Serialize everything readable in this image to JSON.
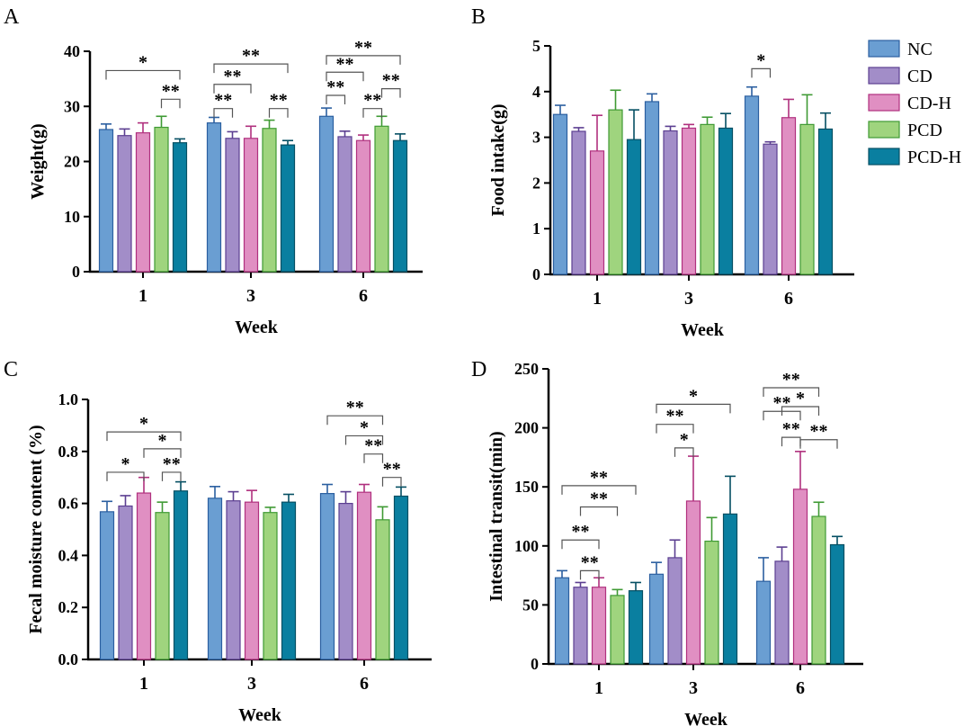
{
  "legend": [
    {
      "name": "NC",
      "color": "#6a9ed2",
      "edge": "#2b5fa0"
    },
    {
      "name": "CD",
      "color": "#a28dc8",
      "edge": "#5c3f91"
    },
    {
      "name": "CD-H",
      "color": "#e08fc2",
      "edge": "#b0307e"
    },
    {
      "name": "PCD",
      "color": "#9fd47e",
      "edge": "#3f9a34"
    },
    {
      "name": "PCD-H",
      "color": "#0a7fa0",
      "edge": "#054f63"
    }
  ],
  "chart_data": [
    {
      "type": "bar",
      "panel": "A",
      "categories": [
        "1",
        "3",
        "6"
      ],
      "xlabel": "Week",
      "ylabel": "Weight(g)",
      "ylim": [
        0,
        40
      ],
      "yticks": [
        0,
        10,
        20,
        30,
        40
      ],
      "series": [
        {
          "name": "NC",
          "values": [
            25.8,
            27.0,
            28.2
          ],
          "errors": [
            1.0,
            1.0,
            1.5
          ]
        },
        {
          "name": "CD",
          "values": [
            24.7,
            24.2,
            24.5
          ],
          "errors": [
            1.2,
            1.2,
            1.0
          ]
        },
        {
          "name": "CD-H",
          "values": [
            25.2,
            24.2,
            23.8
          ],
          "errors": [
            1.8,
            2.2,
            1.0
          ]
        },
        {
          "name": "PCD",
          "values": [
            26.2,
            26.0,
            26.4
          ],
          "errors": [
            2.0,
            1.5,
            1.8
          ]
        },
        {
          "name": "PCD-H",
          "values": [
            23.4,
            23.0,
            23.8
          ],
          "errors": [
            0.7,
            0.8,
            1.2
          ]
        }
      ],
      "annotations": [
        {
          "cat": 0,
          "from": 0,
          "to": 4,
          "y": 36.5,
          "label": "*"
        },
        {
          "cat": 0,
          "from": 3,
          "to": 4,
          "y": 31.3,
          "label": "**"
        },
        {
          "cat": 1,
          "from": 0,
          "to": 4,
          "y": 37.7,
          "label": "**"
        },
        {
          "cat": 1,
          "from": 0,
          "to": 2,
          "y": 34.0,
          "label": "**"
        },
        {
          "cat": 1,
          "from": 0,
          "to": 1,
          "y": 29.6,
          "label": "**"
        },
        {
          "cat": 1,
          "from": 3,
          "to": 4,
          "y": 29.6,
          "label": "**"
        },
        {
          "cat": 2,
          "from": 0,
          "to": 4,
          "y": 39.2,
          "label": "**"
        },
        {
          "cat": 2,
          "from": 0,
          "to": 2,
          "y": 36.2,
          "label": "**"
        },
        {
          "cat": 2,
          "from": 0,
          "to": 1,
          "y": 32.0,
          "label": "**"
        },
        {
          "cat": 2,
          "from": 3,
          "to": 4,
          "y": 33.2,
          "label": "**"
        },
        {
          "cat": 2,
          "from": 2,
          "to": 3,
          "y": 29.6,
          "label": "**"
        }
      ]
    },
    {
      "type": "bar",
      "panel": "B",
      "categories": [
        "1",
        "3",
        "6"
      ],
      "xlabel": "Week",
      "ylabel": "Food intake(g)",
      "ylim": [
        0,
        5
      ],
      "yticks": [
        0,
        1,
        2,
        3,
        4,
        5
      ],
      "series": [
        {
          "name": "NC",
          "values": [
            3.5,
            3.78,
            3.9
          ],
          "errors": [
            0.2,
            0.17,
            0.2
          ]
        },
        {
          "name": "CD",
          "values": [
            3.13,
            3.14,
            2.85
          ],
          "errors": [
            0.08,
            0.1,
            0.05
          ]
        },
        {
          "name": "CD-H",
          "values": [
            2.7,
            3.2,
            3.43
          ],
          "errors": [
            0.78,
            0.08,
            0.4
          ]
        },
        {
          "name": "PCD",
          "values": [
            3.6,
            3.28,
            3.28
          ],
          "errors": [
            0.43,
            0.16,
            0.65
          ]
        },
        {
          "name": "PCD-H",
          "values": [
            2.95,
            3.2,
            3.18
          ],
          "errors": [
            0.65,
            0.32,
            0.35
          ]
        }
      ],
      "annotations": [
        {
          "cat": 2,
          "from": 0,
          "to": 1,
          "y": 4.5,
          "label": "*"
        }
      ]
    },
    {
      "type": "bar",
      "panel": "C",
      "categories": [
        "1",
        "3",
        "6"
      ],
      "xlabel": "Week",
      "ylabel": "Fecal moisture content (%)",
      "ylim": [
        0,
        1.0
      ],
      "yticks": [
        0.0,
        0.2,
        0.4,
        0.6,
        0.8,
        1.0
      ],
      "ytick_labels": [
        "0.0",
        "0.2",
        "0.4",
        "0.6",
        "0.8",
        "1.0"
      ],
      "series": [
        {
          "name": "NC",
          "values": [
            0.568,
            0.62,
            0.638
          ],
          "errors": [
            0.04,
            0.045,
            0.035
          ]
        },
        {
          "name": "CD",
          "values": [
            0.59,
            0.61,
            0.6
          ],
          "errors": [
            0.04,
            0.035,
            0.045
          ]
        },
        {
          "name": "CD-H",
          "values": [
            0.64,
            0.605,
            0.643
          ],
          "errors": [
            0.06,
            0.045,
            0.03
          ]
        },
        {
          "name": "PCD",
          "values": [
            0.565,
            0.565,
            0.537
          ],
          "errors": [
            0.04,
            0.02,
            0.05
          ]
        },
        {
          "name": "PCD-H",
          "values": [
            0.648,
            0.605,
            0.628
          ],
          "errors": [
            0.035,
            0.03,
            0.035
          ]
        }
      ],
      "annotations": [
        {
          "cat": 0,
          "from": 0,
          "to": 4,
          "y": 0.875,
          "label": "*"
        },
        {
          "cat": 0,
          "from": 2,
          "to": 4,
          "y": 0.81,
          "label": "*"
        },
        {
          "cat": 0,
          "from": 0,
          "to": 2,
          "y": 0.72,
          "label": "*"
        },
        {
          "cat": 0,
          "from": 3,
          "to": 4,
          "y": 0.72,
          "label": "**"
        },
        {
          "cat": 2,
          "from": 0,
          "to": 3,
          "y": 0.937,
          "label": "**"
        },
        {
          "cat": 2,
          "from": 1,
          "to": 3,
          "y": 0.86,
          "label": "*"
        },
        {
          "cat": 2,
          "from": 2,
          "to": 3,
          "y": 0.79,
          "label": "**"
        },
        {
          "cat": 2,
          "from": 3,
          "to": 4,
          "y": 0.7,
          "label": "**"
        }
      ]
    },
    {
      "type": "bar",
      "panel": "D",
      "categories": [
        "1",
        "3",
        "6"
      ],
      "xlabel": "Week",
      "ylabel": "Intestinal transit(min)",
      "ylim": [
        0,
        250
      ],
      "yticks": [
        0,
        50,
        100,
        150,
        200,
        250
      ],
      "series": [
        {
          "name": "NC",
          "values": [
            73,
            76,
            70
          ],
          "errors": [
            6,
            10,
            20
          ]
        },
        {
          "name": "CD",
          "values": [
            65,
            90,
            87
          ],
          "errors": [
            4,
            15,
            12
          ]
        },
        {
          "name": "CD-H",
          "values": [
            65,
            138,
            148
          ],
          "errors": [
            8,
            38,
            32
          ]
        },
        {
          "name": "PCD",
          "values": [
            58,
            104,
            125
          ],
          "errors": [
            5,
            20,
            12
          ]
        },
        {
          "name": "PCD-H",
          "values": [
            62,
            127,
            101
          ],
          "errors": [
            7,
            32,
            7
          ]
        }
      ],
      "annotations": [
        {
          "cat": 0,
          "from": 0,
          "to": 4,
          "y": 151,
          "label": "**"
        },
        {
          "cat": 0,
          "from": 1,
          "to": 3,
          "y": 133,
          "label": "**"
        },
        {
          "cat": 0,
          "from": 0,
          "to": 2,
          "y": 105,
          "label": "**"
        },
        {
          "cat": 0,
          "from": 1,
          "to": 2,
          "y": 79,
          "label": "**"
        },
        {
          "cat": 1,
          "from": 0,
          "to": 4,
          "y": 220,
          "label": "*"
        },
        {
          "cat": 1,
          "from": 0,
          "to": 2,
          "y": 203,
          "label": "**"
        },
        {
          "cat": 1,
          "from": 1,
          "to": 2,
          "y": 183,
          "label": "*"
        },
        {
          "cat": 2,
          "from": 0,
          "to": 3,
          "y": 234,
          "label": "**"
        },
        {
          "cat": 2,
          "from": 1,
          "to": 3,
          "y": 218,
          "label": "*"
        },
        {
          "cat": 2,
          "from": 0,
          "to": 2,
          "y": 214,
          "label": "**"
        },
        {
          "cat": 2,
          "from": 1,
          "to": 2,
          "y": 192,
          "label": "**"
        },
        {
          "cat": 2,
          "from": 2,
          "to": 4,
          "y": 190,
          "label": "**"
        }
      ]
    }
  ]
}
